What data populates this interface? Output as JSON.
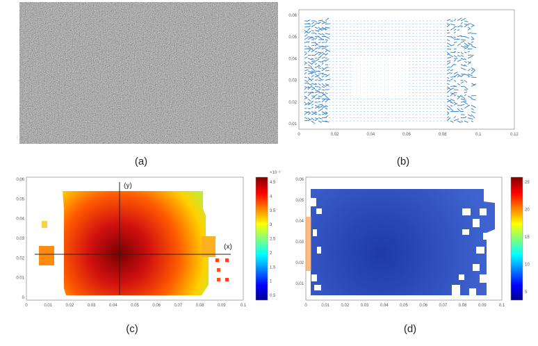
{
  "panels": [
    {
      "caption": "(a)"
    },
    {
      "caption": "(b)",
      "x_ticks": [
        "0",
        "0.02",
        "0.04",
        "0.06",
        "0.08",
        "0.1",
        "0.12"
      ],
      "y_ticks": [
        "0.06",
        "0.05",
        "0.04",
        "0.03",
        "0.02",
        "0.01"
      ]
    },
    {
      "caption": "(c)",
      "x_ticks": [
        "0",
        "0.01",
        "0.02",
        "0.03",
        "0.04",
        "0.05",
        "0.06",
        "0.07",
        "0.08",
        "0.09",
        "0.1"
      ],
      "y_ticks": [
        "0.06",
        "0.05",
        "0.04",
        "0.03",
        "0.02",
        "0.01",
        "0"
      ],
      "axis_labels": [
        "(y)",
        "(x)"
      ],
      "colorbar_exponent": "×10⁻³",
      "colorbar_ticks": [
        "4.5",
        "4",
        "3.5",
        "3",
        "2.5",
        "2",
        "1.5",
        "1",
        "0.5"
      ]
    },
    {
      "caption": "(d)",
      "x_ticks": [
        "0",
        "0.01",
        "0.02",
        "0.03",
        "0.04",
        "0.05",
        "0.06",
        "0.07",
        "0.08",
        "0.09",
        "0.1"
      ],
      "y_ticks": [
        "0.06",
        "0.05",
        "0.04",
        "0.03",
        "0.02",
        "0.01"
      ],
      "colorbar_ticks": [
        "25",
        "20",
        "15",
        "10",
        "5"
      ]
    }
  ]
}
